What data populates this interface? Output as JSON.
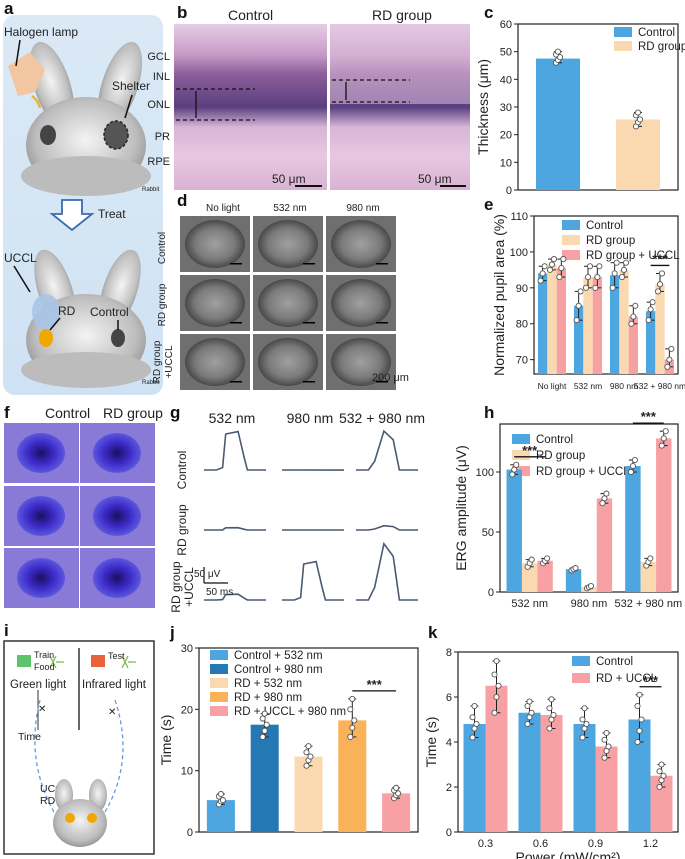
{
  "panels": {
    "a": {
      "label": "a",
      "lamp_label": "Halogen lamp",
      "shelter_label": "Shelter",
      "treat_label": "Treat",
      "uccl_label": "UCCL",
      "rd_label": "RD",
      "control_label": "Control",
      "watermark": "Rabbit"
    },
    "b": {
      "label": "b",
      "col_control": "Control",
      "col_rd": "RD group",
      "layers": [
        "GCL",
        "INL",
        "ONL",
        "PR",
        "RPE"
      ],
      "scalebar": "50 μm"
    },
    "d": {
      "label": "d",
      "cols": [
        "No light",
        "532 nm",
        "980 nm"
      ],
      "rows": [
        "Control",
        "RD group",
        "RD group",
        "+UCCL"
      ],
      "scalebar": "200 μm"
    },
    "f": {
      "label": "f",
      "col_control": "Control",
      "col_rd": "RD group"
    },
    "g": {
      "label": "g",
      "cols": [
        "532 nm",
        "980 nm",
        "532 + 980 nm"
      ],
      "rows": [
        "Control",
        "RD group",
        "RD group",
        "+UCCL"
      ],
      "scale_v": "50 μV",
      "scale_t": "50 ms"
    },
    "i": {
      "label": "i",
      "train": "Train",
      "food": "Food",
      "test": "Test",
      "green": "Green light",
      "ir": "Infrared light",
      "time": "Time",
      "uccl": "UCCL",
      "rd": "RD"
    }
  },
  "colors": {
    "blue": "#4ea6e0",
    "peach": "#fbd9b0",
    "pink": "#f7a1a4",
    "darkblue": "#2478b4",
    "orange": "#f9b25a",
    "trace": "#4a5a70"
  },
  "chart_data": [
    {
      "id": "c",
      "label": "c",
      "type": "bar",
      "categories": [
        "Control",
        "RD group"
      ],
      "values": [
        47.5,
        25.5
      ],
      "points": [
        [
          46,
          47,
          48,
          49,
          50
        ],
        [
          23,
          24.5,
          25.5,
          27,
          28
        ]
      ],
      "ylabel": "Thickness (μm)",
      "ylim": [
        0,
        60
      ],
      "yticks": [
        0,
        10,
        20,
        30,
        40,
        50,
        60
      ],
      "legend": [
        "Control",
        "RD group"
      ]
    },
    {
      "id": "e",
      "label": "e",
      "type": "bar",
      "categories": [
        "No light",
        "532 nm",
        "980 nm",
        "532 + 980 nm"
      ],
      "series": [
        {
          "name": "Control",
          "values": [
            94,
            85,
            93.5,
            83.5
          ],
          "points": [
            [
              92,
              94,
              96
            ],
            [
              81,
              85,
              89
            ],
            [
              90,
              94,
              97
            ],
            [
              81,
              84,
              86
            ]
          ]
        },
        {
          "name": "RD group",
          "values": [
            96.5,
            93,
            95,
            91
          ],
          "points": [
            [
              95,
              96.5,
              98
            ],
            [
              90,
              93,
              96
            ],
            [
              93,
              95,
              97
            ],
            [
              89,
              91,
              94
            ]
          ]
        },
        {
          "name": "RD group + UCCL",
          "values": [
            95.5,
            93,
            82,
            70
          ],
          "points": [
            [
              93,
              95.5,
              98
            ],
            [
              90,
              93,
              96
            ],
            [
              80,
              82,
              85
            ],
            [
              68,
              70,
              73
            ]
          ]
        }
      ],
      "ylabel": "Normalized pupil area (%)",
      "ylim": [
        66,
        110
      ],
      "yticks": [
        70,
        80,
        90,
        100,
        110
      ],
      "significance": [
        {
          "group": 3,
          "label": "***"
        }
      ]
    },
    {
      "id": "h",
      "label": "h",
      "type": "bar",
      "categories": [
        "532 nm",
        "980 nm",
        "532 + 980 nm"
      ],
      "series": [
        {
          "name": "Control",
          "values": [
            102,
            19,
            105
          ],
          "points": [
            [
              98,
              102,
              106
            ],
            [
              18,
              19,
              20
            ],
            [
              100,
              105,
              110
            ]
          ]
        },
        {
          "name": "RD group",
          "values": [
            24,
            4,
            25
          ],
          "points": [
            [
              21,
              24,
              27
            ],
            [
              3,
              4,
              5
            ],
            [
              22,
              25,
              28
            ]
          ]
        },
        {
          "name": "RD group + UCCL",
          "values": [
            26,
            78,
            128
          ],
          "points": [
            [
              24,
              26,
              28
            ],
            [
              74,
              78,
              82
            ],
            [
              122,
              128,
              134
            ]
          ]
        }
      ],
      "ylabel": "ERG amplitude (μV)",
      "ylim": [
        0,
        140
      ],
      "yticks": [
        0,
        50,
        100
      ],
      "significance": [
        {
          "group": 0,
          "label": "***"
        },
        {
          "group": 2,
          "label": "***"
        }
      ]
    },
    {
      "id": "j",
      "label": "j",
      "type": "bar",
      "categories": [
        "Control + 532 nm",
        "Control + 980 nm",
        "RD + 532 nm",
        "RD + 980 nm",
        "RD + UCCL + 980 nm"
      ],
      "values": [
        5.2,
        17.5,
        12.3,
        18.2,
        6.3
      ],
      "points": [
        [
          4.5,
          5,
          5.2,
          5.8,
          6.2
        ],
        [
          15.5,
          16.5,
          17.5,
          18.5,
          19.3
        ],
        [
          10.8,
          11.7,
          12.3,
          13,
          14
        ],
        [
          15.5,
          17,
          18.2,
          20,
          21.7
        ],
        [
          5.5,
          6,
          6.3,
          6.8,
          7.2
        ]
      ],
      "ylabel": "Time (s)",
      "ylim": [
        0,
        30
      ],
      "yticks": [
        0,
        10,
        20,
        30
      ],
      "significance": [
        {
          "from": 3,
          "to": 4,
          "label": "***"
        }
      ]
    },
    {
      "id": "k",
      "label": "k",
      "type": "bar",
      "categories": [
        "0.3",
        "0.6",
        "0.9",
        "1.2"
      ],
      "series": [
        {
          "name": "Control",
          "values": [
            4.8,
            5.3,
            4.8,
            5.0
          ],
          "points": [
            [
              4.2,
              4.6,
              4.8,
              5.1,
              5.6
            ],
            [
              4.8,
              5.1,
              5.3,
              5.6,
              5.8
            ],
            [
              4.2,
              4.6,
              4.8,
              5.0,
              5.5
            ],
            [
              4.0,
              4.5,
              5.0,
              5.6,
              6.1
            ]
          ]
        },
        {
          "name": "RD + UCCL",
          "values": [
            6.5,
            5.2,
            3.8,
            2.5
          ],
          "points": [
            [
              5.3,
              6.0,
              6.5,
              7.0,
              7.6
            ],
            [
              4.6,
              5.0,
              5.2,
              5.5,
              5.9
            ],
            [
              3.3,
              3.6,
              3.8,
              4.1,
              4.4
            ],
            [
              2.0,
              2.3,
              2.5,
              2.7,
              3.0
            ]
          ]
        }
      ],
      "xlabel": "Power (mW/cm²)",
      "ylabel": "Time (s)",
      "ylim": [
        0,
        8
      ],
      "yticks": [
        0,
        2,
        4,
        6,
        8
      ],
      "significance": [
        {
          "group": 3,
          "label": "***"
        }
      ]
    }
  ]
}
